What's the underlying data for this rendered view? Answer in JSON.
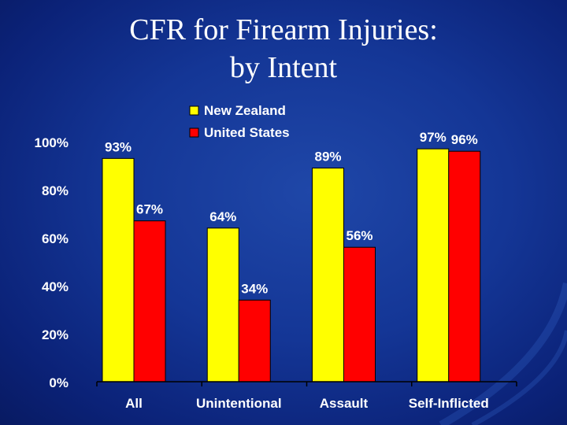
{
  "slide": {
    "title_line1": "CFR for Firearm Injuries:",
    "title_line2": "by Intent"
  },
  "colors": {
    "series1": "#ffff00",
    "series2": "#ff0000",
    "axis": "#000000",
    "text": "#ffffff"
  },
  "chart_data": {
    "type": "bar",
    "title": "CFR for Firearm Injuries: by Intent",
    "xlabel": "",
    "ylabel": "",
    "categories": [
      "All",
      "Unintentional",
      "Assault",
      "Self-Inflicted"
    ],
    "series": [
      {
        "name": "New Zealand",
        "values": [
          93,
          64,
          89,
          97
        ],
        "labels": [
          "93%",
          "64%",
          "89%",
          "97%"
        ]
      },
      {
        "name": "United States",
        "values": [
          67,
          34,
          56,
          96
        ],
        "labels": [
          "67%",
          "34%",
          "56%",
          "96%"
        ]
      }
    ],
    "ylim": [
      0,
      100
    ],
    "yticks": [
      0,
      20,
      40,
      60,
      80,
      100
    ],
    "ytick_labels": [
      "0%",
      "20%",
      "40%",
      "60%",
      "80%",
      "100%"
    ],
    "legend": "top-center",
    "grid": false
  }
}
